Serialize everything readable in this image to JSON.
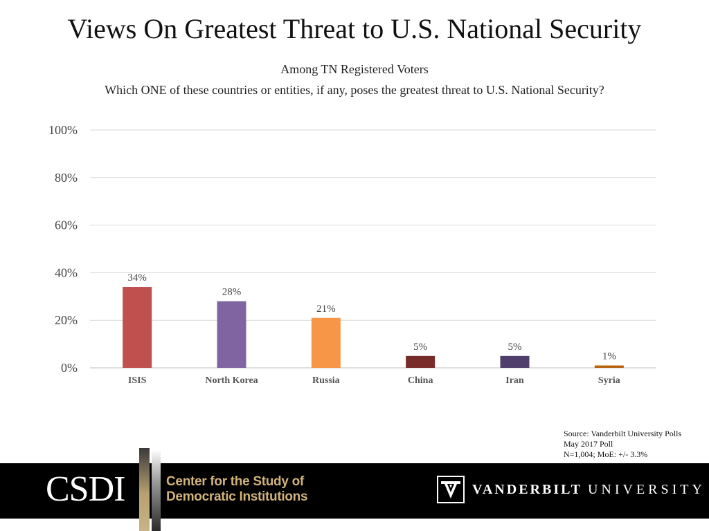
{
  "title": "Views On Greatest Threat to U.S. National Security",
  "subtitle": "Among TN Registered Voters",
  "question": "Which ONE of these countries or entities, if any, poses the greatest threat to U.S. National Security?",
  "chart_data": {
    "type": "bar",
    "title": "Views On Greatest Threat to U.S. National Security",
    "categories": [
      "ISIS",
      "North Korea",
      "Russia",
      "China",
      "Iran",
      "Syria"
    ],
    "values": [
      34,
      28,
      21,
      5,
      5,
      1
    ],
    "value_labels": [
      "34%",
      "28%",
      "21%",
      "5%",
      "5%",
      "1%"
    ],
    "colors": [
      "#c0504d",
      "#8064a2",
      "#f79646",
      "#772c2a",
      "#4f3d6b",
      "#b8620d"
    ],
    "yticks": [
      0,
      20,
      40,
      60,
      80,
      100
    ],
    "ytick_labels": [
      "0%",
      "20%",
      "40%",
      "60%",
      "80%",
      "100%"
    ],
    "ylim": [
      0,
      100
    ],
    "xlabel": "",
    "ylabel": "",
    "grid": true,
    "legend": "none"
  },
  "source": {
    "line1": "Source: Vanderbilt University Polls",
    "line2": "May 2017 Poll",
    "line3": "N=1,004; MoE: +/- 3.3%"
  },
  "footer": {
    "csdi_logo": "CSDI",
    "csdi_name_line1": "Center for the Study of",
    "csdi_name_line2": "Democratic Institutions",
    "vu_name_bold": "VANDERBILT",
    "vu_name_light": "UNIVERSITY",
    "background_color": "#000000",
    "gold_color": "#d1b27a"
  }
}
